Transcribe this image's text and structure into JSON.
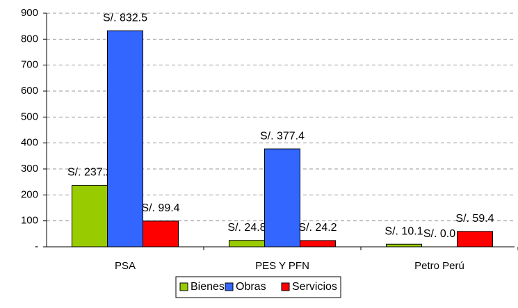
{
  "chart_data": {
    "type": "bar",
    "categories": [
      "PSA",
      "PES Y PFN",
      "Petro Perú"
    ],
    "series": [
      {
        "name": "Bienes",
        "color": "#99cc00",
        "values": [
          237.2,
          24.8,
          10.1
        ],
        "value_labels": [
          "S/. 237.2",
          "S/. 24.8",
          "S/. 10.1"
        ]
      },
      {
        "name": "Obras",
        "color": "#3366ff",
        "values": [
          832.5,
          377.4,
          0.0
        ],
        "value_labels": [
          "S/. 832.5",
          "S/. 377.4",
          "S/. 0.0"
        ]
      },
      {
        "name": "Servicios",
        "color": "#ff0000",
        "values": [
          99.4,
          24.2,
          59.4
        ],
        "value_labels": [
          "S/. 99.4",
          "S/. 24.2",
          "S/. 59.4"
        ]
      }
    ],
    "ylim": [
      0,
      900
    ],
    "yticks": [
      {
        "value": 0,
        "label": "-"
      },
      100,
      200,
      300,
      400,
      500,
      600,
      700,
      800,
      900
    ],
    "grid": true,
    "legend": "bottom"
  }
}
